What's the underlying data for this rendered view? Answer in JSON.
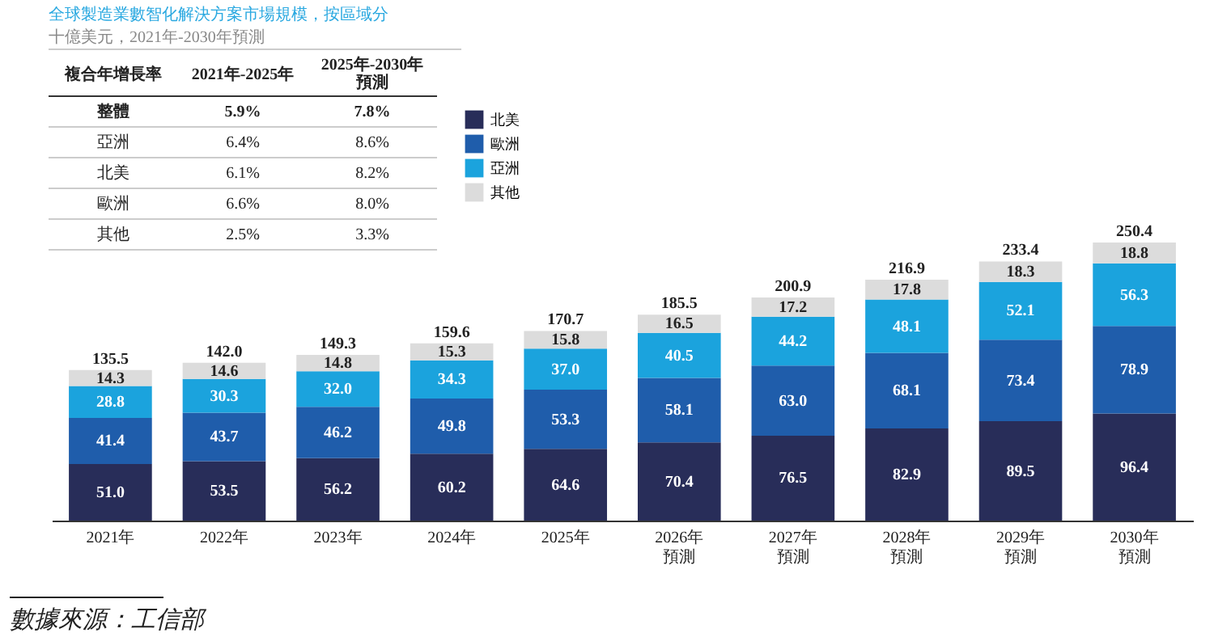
{
  "chart_data": {
    "type": "bar",
    "title": "全球製造業數智化解決方案市場規模，按區域分",
    "subtitle": "十億美元，2021年-2030年預測",
    "categories": [
      "2021年",
      "2022年",
      "2023年",
      "2024年",
      "2025年",
      "2026年預測",
      "2027年預測",
      "2028年預測",
      "2029年預測",
      "2030年預測"
    ],
    "series": [
      {
        "name": "北美",
        "color": "#282d59",
        "values": [
          51.0,
          53.5,
          56.2,
          60.2,
          64.6,
          70.4,
          76.5,
          82.9,
          89.5,
          96.4
        ],
        "value_labels": [
          "51.0",
          "53.5",
          "56.2",
          "60.2",
          "64.6",
          "70.4",
          "76.5",
          "82.9",
          "89.5",
          "96.4"
        ]
      },
      {
        "name": "歐洲",
        "color": "#1f5dab",
        "values": [
          41.4,
          43.7,
          46.2,
          49.8,
          53.3,
          58.1,
          63.0,
          68.1,
          73.4,
          78.9
        ],
        "value_labels": [
          "41.4",
          "43.7",
          "46.2",
          "49.8",
          "53.3",
          "58.1",
          "63.0",
          "68.1",
          "73.4",
          "78.9"
        ]
      },
      {
        "name": "亞洲",
        "color": "#1ba3dd",
        "values": [
          28.8,
          30.3,
          32.0,
          34.3,
          37.0,
          40.5,
          44.2,
          48.1,
          52.1,
          56.3
        ],
        "value_labels": [
          "28.8",
          "30.3",
          "32.0",
          "34.3",
          "37.0",
          "40.5",
          "44.2",
          "48.1",
          "52.1",
          "56.3"
        ]
      },
      {
        "name": "其他",
        "color": "#dcdcdc",
        "values": [
          14.3,
          14.6,
          14.8,
          15.3,
          15.8,
          16.5,
          17.2,
          17.8,
          18.3,
          18.8
        ],
        "value_labels": [
          "14.3",
          "14.6",
          "14.8",
          "15.3",
          "15.8",
          "16.5",
          "17.2",
          "17.8",
          "18.3",
          "18.8"
        ]
      }
    ],
    "stacked": true,
    "totals": [
      "135.5",
      "142.0",
      "149.3",
      "159.6",
      "170.7",
      "185.5",
      "200.9",
      "216.9",
      "233.4",
      "250.4"
    ],
    "legend": "top left",
    "annotations": [
      "複合年增長率",
      "2021年-2025年",
      "2025年-2030年預測",
      "整體",
      "5.9%",
      "7.8%",
      "亞洲",
      "6.4%",
      "8.6%",
      "北美",
      "6.1%",
      "8.2%",
      "歐洲",
      "6.6%",
      "8.0%",
      "其他",
      "2.5%",
      "3.3%",
      "數據來源：工信部"
    ]
  }
}
